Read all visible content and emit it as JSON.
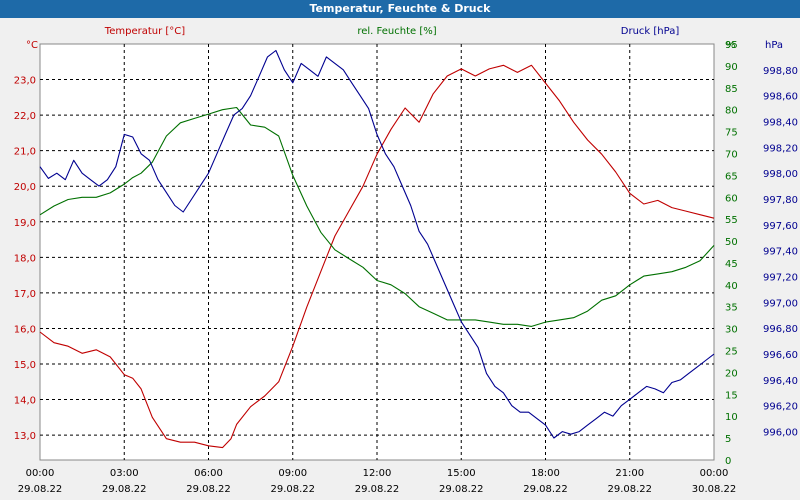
{
  "window": {
    "title": "Temperatur, Feuchte & Druck"
  },
  "legend": {
    "temp": "Temperatur [°C]",
    "hum": "rel. Feuchte [%]",
    "press": "Druck [hPa]"
  },
  "axes": {
    "temp_unit": "°C",
    "press_unit": "hPa",
    "hum_unit": "%"
  },
  "colors": {
    "temp": "#c00000",
    "hum": "#007000",
    "press": "#000090",
    "title_bg": "#1e6aa8",
    "grid": "#000000"
  },
  "chart_data": {
    "type": "line",
    "title": "Temperatur, Feuchte & Druck",
    "x_ticks": [
      {
        "time": "00:00",
        "date": "29.08.22"
      },
      {
        "time": "03:00",
        "date": "29.08.22"
      },
      {
        "time": "06:00",
        "date": "29.08.22"
      },
      {
        "time": "09:00",
        "date": "29.08.22"
      },
      {
        "time": "12:00",
        "date": "29.08.22"
      },
      {
        "time": "15:00",
        "date": "29.08.22"
      },
      {
        "time": "18:00",
        "date": "29.08.22"
      },
      {
        "time": "21:00",
        "date": "29.08.22"
      },
      {
        "time": "00:00",
        "date": "30.08.22"
      }
    ],
    "xlim_hours": [
      0,
      24
    ],
    "temp_axis": {
      "min": 12.3,
      "max": 24.0,
      "ticks": [
        "13,0",
        "14,0",
        "15,0",
        "16,0",
        "17,0",
        "18,0",
        "19,0",
        "20,0",
        "21,0",
        "22,0",
        "23,0"
      ]
    },
    "hum_axis": {
      "min": 0,
      "max": 95,
      "ticks": [
        "0",
        "5",
        "10",
        "15",
        "20",
        "25",
        "30",
        "35",
        "40",
        "45",
        "50",
        "55",
        "60",
        "65",
        "70",
        "75",
        "80",
        "85",
        "90",
        "95"
      ]
    },
    "press_axis": {
      "min": 995.78,
      "max": 999.0,
      "ticks": [
        "996,00",
        "996,20",
        "996,40",
        "996,60",
        "996,80",
        "997,00",
        "997,20",
        "997,40",
        "997,60",
        "997,80",
        "998,00",
        "998,20",
        "998,40",
        "998,60",
        "998,80"
      ]
    },
    "series": [
      {
        "name": "Temperatur [°C]",
        "axis": "temp",
        "points": [
          [
            0,
            15.9
          ],
          [
            0.5,
            15.6
          ],
          [
            1,
            15.5
          ],
          [
            1.5,
            15.3
          ],
          [
            2,
            15.4
          ],
          [
            2.5,
            15.2
          ],
          [
            3,
            14.7
          ],
          [
            3.3,
            14.6
          ],
          [
            3.6,
            14.3
          ],
          [
            4,
            13.5
          ],
          [
            4.5,
            12.9
          ],
          [
            5,
            12.8
          ],
          [
            5.5,
            12.8
          ],
          [
            6,
            12.7
          ],
          [
            6.5,
            12.65
          ],
          [
            6.8,
            12.9
          ],
          [
            7,
            13.3
          ],
          [
            7.5,
            13.8
          ],
          [
            8,
            14.1
          ],
          [
            8.5,
            14.5
          ],
          [
            9,
            15.5
          ],
          [
            9.5,
            16.6
          ],
          [
            10,
            17.6
          ],
          [
            10.5,
            18.6
          ],
          [
            11,
            19.3
          ],
          [
            11.5,
            20.0
          ],
          [
            12,
            20.9
          ],
          [
            12.5,
            21.6
          ],
          [
            13,
            22.2
          ],
          [
            13.5,
            21.8
          ],
          [
            14,
            22.6
          ],
          [
            14.5,
            23.1
          ],
          [
            15,
            23.3
          ],
          [
            15.5,
            23.1
          ],
          [
            16,
            23.3
          ],
          [
            16.5,
            23.4
          ],
          [
            17,
            23.2
          ],
          [
            17.5,
            23.4
          ],
          [
            18,
            22.9
          ],
          [
            18.5,
            22.4
          ],
          [
            19,
            21.8
          ],
          [
            19.5,
            21.3
          ],
          [
            20,
            20.9
          ],
          [
            20.5,
            20.4
          ],
          [
            21,
            19.8
          ],
          [
            21.5,
            19.5
          ],
          [
            22,
            19.6
          ],
          [
            22.5,
            19.4
          ],
          [
            23,
            19.3
          ],
          [
            23.5,
            19.2
          ],
          [
            24,
            19.1
          ]
        ]
      },
      {
        "name": "rel. Feuchte [%]",
        "axis": "hum",
        "points": [
          [
            0,
            56
          ],
          [
            0.5,
            58
          ],
          [
            1,
            59.5
          ],
          [
            1.5,
            60
          ],
          [
            2,
            60
          ],
          [
            2.5,
            61
          ],
          [
            3,
            63
          ],
          [
            3.3,
            64.5
          ],
          [
            3.6,
            65.5
          ],
          [
            4,
            68
          ],
          [
            4.5,
            74
          ],
          [
            5,
            77
          ],
          [
            5.5,
            78
          ],
          [
            6,
            79
          ],
          [
            6.5,
            80
          ],
          [
            7,
            80.5
          ],
          [
            7.5,
            76.5
          ],
          [
            8,
            76
          ],
          [
            8.5,
            74
          ],
          [
            9,
            65
          ],
          [
            9.5,
            58
          ],
          [
            10,
            52
          ],
          [
            10.5,
            48
          ],
          [
            11,
            46
          ],
          [
            11.5,
            44
          ],
          [
            12,
            41
          ],
          [
            12.5,
            40
          ],
          [
            13,
            38
          ],
          [
            13.5,
            35
          ],
          [
            14,
            33.5
          ],
          [
            14.5,
            32
          ],
          [
            15,
            32
          ],
          [
            15.5,
            32
          ],
          [
            16,
            31.5
          ],
          [
            16.5,
            31
          ],
          [
            17,
            31
          ],
          [
            17.5,
            30.5
          ],
          [
            18,
            31.5
          ],
          [
            18.5,
            32
          ],
          [
            19,
            32.5
          ],
          [
            19.5,
            34
          ],
          [
            20,
            36.5
          ],
          [
            20.5,
            37.5
          ],
          [
            21,
            40
          ],
          [
            21.5,
            42
          ],
          [
            22,
            42.5
          ],
          [
            22.5,
            43
          ],
          [
            23,
            44
          ],
          [
            23.5,
            45.5
          ],
          [
            24,
            49
          ]
        ]
      },
      {
        "name": "Druck [hPa]",
        "axis": "press",
        "points": [
          [
            0,
            998.05
          ],
          [
            0.3,
            997.96
          ],
          [
            0.6,
            998.0
          ],
          [
            0.9,
            997.95
          ],
          [
            1.2,
            998.1
          ],
          [
            1.5,
            998.0
          ],
          [
            1.8,
            997.95
          ],
          [
            2.1,
            997.9
          ],
          [
            2.4,
            997.95
          ],
          [
            2.7,
            998.05
          ],
          [
            3,
            998.3
          ],
          [
            3.3,
            998.28
          ],
          [
            3.6,
            998.15
          ],
          [
            3.9,
            998.1
          ],
          [
            4.2,
            997.95
          ],
          [
            4.5,
            997.85
          ],
          [
            4.8,
            997.75
          ],
          [
            5.1,
            997.7
          ],
          [
            5.4,
            997.8
          ],
          [
            5.7,
            997.9
          ],
          [
            6,
            998.0
          ],
          [
            6.3,
            998.15
          ],
          [
            6.6,
            998.3
          ],
          [
            6.9,
            998.45
          ],
          [
            7.2,
            998.5
          ],
          [
            7.5,
            998.6
          ],
          [
            7.8,
            998.75
          ],
          [
            8.1,
            998.9
          ],
          [
            8.4,
            998.95
          ],
          [
            8.7,
            998.8
          ],
          [
            9,
            998.7
          ],
          [
            9.3,
            998.85
          ],
          [
            9.6,
            998.8
          ],
          [
            9.9,
            998.75
          ],
          [
            10.2,
            998.9
          ],
          [
            10.5,
            998.85
          ],
          [
            10.8,
            998.8
          ],
          [
            11.1,
            998.7
          ],
          [
            11.4,
            998.6
          ],
          [
            11.7,
            998.5
          ],
          [
            12,
            998.3
          ],
          [
            12.3,
            998.15
          ],
          [
            12.6,
            998.05
          ],
          [
            12.9,
            997.9
          ],
          [
            13.2,
            997.75
          ],
          [
            13.5,
            997.55
          ],
          [
            13.8,
            997.45
          ],
          [
            14.1,
            997.3
          ],
          [
            14.4,
            997.15
          ],
          [
            14.7,
            997.0
          ],
          [
            15,
            996.85
          ],
          [
            15.3,
            996.75
          ],
          [
            15.6,
            996.65
          ],
          [
            15.9,
            996.45
          ],
          [
            16.2,
            996.35
          ],
          [
            16.5,
            996.3
          ],
          [
            16.8,
            996.2
          ],
          [
            17.1,
            996.15
          ],
          [
            17.4,
            996.15
          ],
          [
            17.7,
            996.1
          ],
          [
            18,
            996.05
          ],
          [
            18.3,
            995.95
          ],
          [
            18.6,
            996.0
          ],
          [
            18.9,
            995.98
          ],
          [
            19.2,
            996.0
          ],
          [
            19.5,
            996.05
          ],
          [
            19.8,
            996.1
          ],
          [
            20.1,
            996.15
          ],
          [
            20.4,
            996.12
          ],
          [
            20.7,
            996.2
          ],
          [
            21,
            996.25
          ],
          [
            21.3,
            996.3
          ],
          [
            21.6,
            996.35
          ],
          [
            21.9,
            996.33
          ],
          [
            22.2,
            996.3
          ],
          [
            22.5,
            996.38
          ],
          [
            22.8,
            996.4
          ],
          [
            23.1,
            996.45
          ],
          [
            23.4,
            996.5
          ],
          [
            23.7,
            996.55
          ],
          [
            24,
            996.6
          ]
        ]
      }
    ]
  }
}
